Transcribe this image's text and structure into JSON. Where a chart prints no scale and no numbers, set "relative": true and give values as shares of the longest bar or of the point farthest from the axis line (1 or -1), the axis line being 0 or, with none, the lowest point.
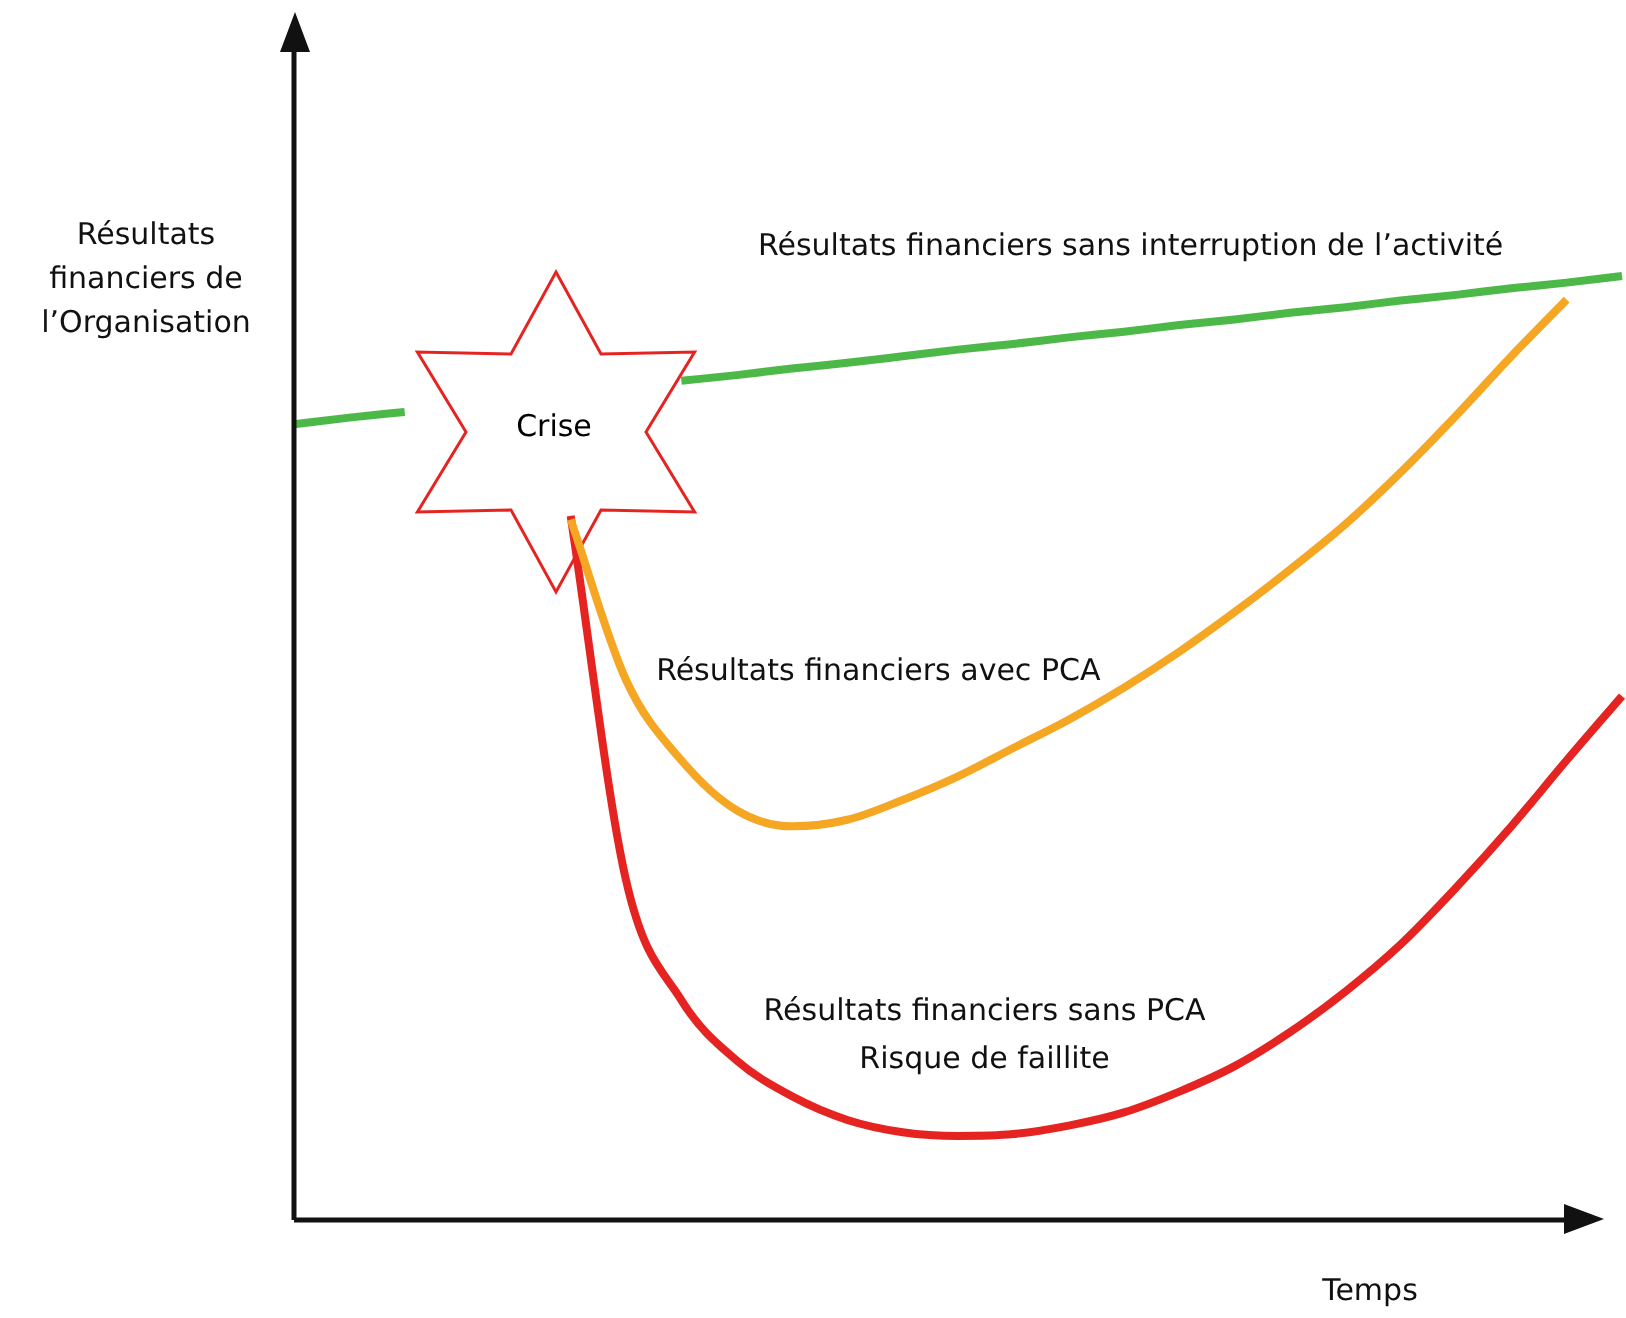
{
  "chart_data": {
    "type": "line",
    "relative": true,
    "xlabel": "Temps",
    "ylabel": "Résultats financiers de l’Organisation",
    "categories": [
      null,
      null,
      null,
      null,
      null,
      null,
      null,
      null,
      null,
      null,
      null,
      null,
      null,
      null,
      null,
      null,
      null,
      null,
      null,
      null,
      null,
      null,
      null,
      null,
      null
    ],
    "series": [
      {
        "name": "Résultats financiers sans interruption de l’activité",
        "color": "#4cb847",
        "values": [
          0.843,
          0.85,
          0.856,
          null,
          null,
          null,
          null,
          0.889,
          0.895,
          0.902,
          0.908,
          0.915,
          0.922,
          0.928,
          0.935,
          0.941,
          0.948,
          0.954,
          0.961,
          0.967,
          0.974,
          0.98,
          0.987,
          0.993,
          1
        ]
      },
      {
        "name": "Résultats financiers avec PCA",
        "color": "#f5a623",
        "values": [
          null,
          null,
          null,
          null,
          null,
          0.742,
          0.572,
          0.487,
          0.434,
          0.417,
          0.424,
          0.445,
          0.47,
          0.5,
          0.53,
          0.564,
          0.602,
          0.644,
          0.689,
          0.737,
          0.792,
          0.852,
          0.915,
          0.975,
          null
        ]
      },
      {
        "name": "Résultats financiers sans PCA",
        "color": "#e52421",
        "values": [
          null,
          null,
          null,
          null,
          null,
          0.746,
          0.36,
          0.233,
          0.169,
          0.131,
          0.106,
          0.093,
          0.089,
          0.091,
          0.1,
          0.114,
          0.136,
          0.163,
          0.199,
          0.242,
          0.292,
          0.352,
          0.417,
          0.487,
          0.555
        ]
      }
    ],
    "annotations": [
      "Crise",
      "Risque de faillite"
    ],
    "legend": false,
    "marker": "none",
    "line_style": "solid"
  }
}
